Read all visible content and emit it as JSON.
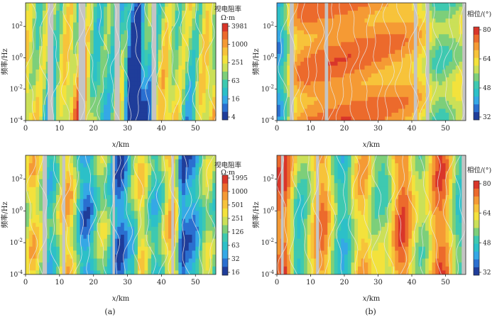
{
  "colors": {
    "palette": [
      "#1f3d9a",
      "#2a6fd0",
      "#35a8e6",
      "#2cc0c8",
      "#3ec9b0",
      "#7dcf7a",
      "#cbe058",
      "#f3e23c",
      "#f7c33a",
      "#f59a34",
      "#ec6a2c",
      "#d9362a"
    ],
    "contour": "#e8e8e8",
    "gap": "#c4c4c4"
  },
  "chart_data": [
    {
      "id": "top-left",
      "type": "heatmap",
      "quantity": "apparent_resistivity",
      "xlabel_italic": "x",
      "xlabel_unit": "/km",
      "ylabel": "频率/Hz",
      "xlim": [
        0,
        56
      ],
      "x_ticks": [
        "0",
        "10",
        "20",
        "30",
        "40",
        "50"
      ],
      "y_ticks": [
        {
          "base": "10",
          "exp": "2"
        },
        {
          "base": "10",
          "exp": "0"
        },
        {
          "base": "10",
          "exp": "-2"
        },
        {
          "base": "10",
          "exp": "-4"
        }
      ],
      "ylim_log10": [
        -4,
        3.5
      ],
      "colorbar": {
        "title": [
          "视电阻率",
          "Ω·m"
        ],
        "ticks": [
          "3981",
          "1000",
          "251",
          "63",
          "16",
          "4"
        ]
      },
      "gaps_km": [
        [
          6.5,
          8.2
        ],
        [
          15.6,
          17.6
        ],
        [
          26.2,
          27.7
        ],
        [
          37.1,
          38.5
        ]
      ],
      "panel": null
    },
    {
      "id": "top-right",
      "type": "heatmap",
      "quantity": "phase",
      "xlabel_italic": "x",
      "xlabel_unit": "/km",
      "ylabel": "频率/Hz",
      "xlim": [
        0,
        56
      ],
      "x_ticks": [
        "0",
        "10",
        "20",
        "30",
        "40",
        "50"
      ],
      "y_ticks": [
        {
          "base": "10",
          "exp": "2"
        },
        {
          "base": "10",
          "exp": "0"
        },
        {
          "base": "10",
          "exp": "-2"
        },
        {
          "base": "10",
          "exp": "-4"
        }
      ],
      "ylim_log10": [
        -4,
        3.5
      ],
      "colorbar": {
        "title": [
          "相位/(°)"
        ],
        "ticks": [
          "80",
          "64",
          "48",
          "32"
        ]
      },
      "gaps_km": [
        [
          3.8,
          5.0
        ],
        [
          14.2,
          15.2
        ],
        [
          40.6,
          41.6
        ],
        [
          44.2,
          45.2
        ],
        [
          55.0,
          56.0
        ]
      ],
      "panel": null
    },
    {
      "id": "bottom-left",
      "type": "heatmap",
      "quantity": "apparent_resistivity",
      "xlabel_italic": "x",
      "xlabel_unit": "/km",
      "ylabel": "频率/Hz",
      "xlim": [
        0,
        56
      ],
      "x_ticks": [
        "0",
        "10",
        "20",
        "30",
        "40",
        "50"
      ],
      "y_ticks": [
        {
          "base": "10",
          "exp": "2"
        },
        {
          "base": "10",
          "exp": "0"
        },
        {
          "base": "10",
          "exp": "-2"
        },
        {
          "base": "10",
          "exp": "-4"
        }
      ],
      "ylim_log10": [
        -4,
        3.5
      ],
      "colorbar": {
        "title": [
          "视电阻率",
          "Ω·m"
        ],
        "ticks": [
          "1995",
          "1000",
          "501",
          "251",
          "126",
          "63",
          "32",
          "16"
        ]
      },
      "gaps_km": [
        [
          5.0,
          6.3
        ],
        [
          10.8,
          11.7
        ],
        [
          25.6,
          26.3
        ],
        [
          42.9,
          43.7
        ]
      ],
      "panel": "(a)"
    },
    {
      "id": "bottom-right",
      "type": "heatmap",
      "quantity": "phase",
      "xlabel_italic": "x",
      "xlabel_unit": "/km",
      "ylabel": "频率/Hz",
      "xlim": [
        0,
        56
      ],
      "x_ticks": [
        "0",
        "10",
        "20",
        "30",
        "40",
        "50"
      ],
      "y_ticks": [
        {
          "base": "10",
          "exp": "2"
        },
        {
          "base": "10",
          "exp": "0"
        },
        {
          "base": "10",
          "exp": "-2"
        },
        {
          "base": "10",
          "exp": "-4"
        }
      ],
      "ylim_log10": [
        -4,
        3.5
      ],
      "colorbar": {
        "title": [
          "相位/(°)"
        ],
        "ticks": [
          "80",
          "64",
          "48",
          "32"
        ]
      },
      "gaps_km": [
        [
          1.2,
          2.0
        ],
        [
          11.6,
          12.5
        ],
        [
          54.8,
          56.0
        ]
      ],
      "panel": "(b)"
    }
  ]
}
